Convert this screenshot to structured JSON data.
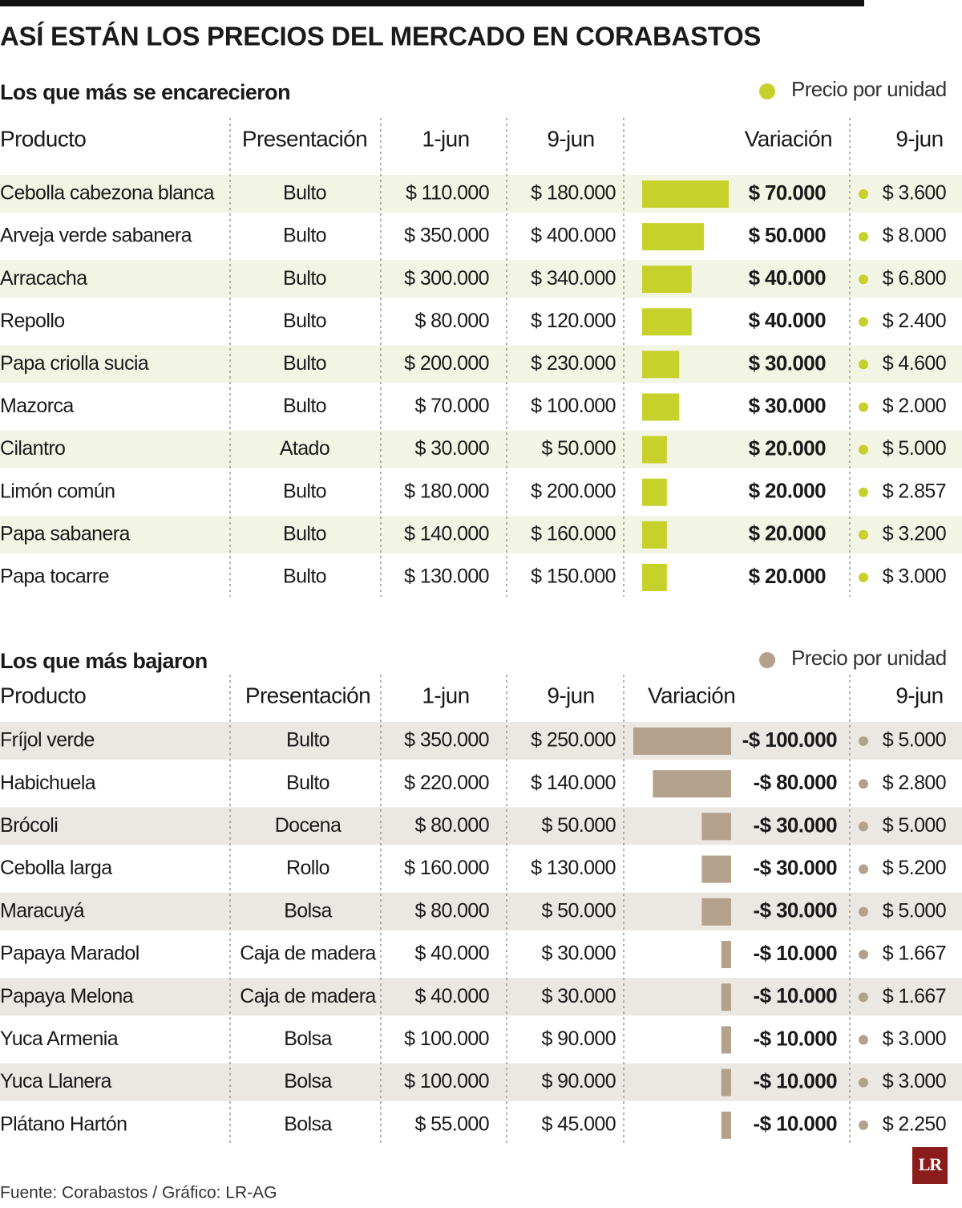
{
  "title": "ASÍ ESTÁN LOS PRECIOS DEL MERCADO EN CORABASTOS",
  "sections": [
    {
      "subtitle": "Los que más se encarecieron",
      "legend": "Precio por unidad",
      "color": "#c6d12b",
      "row_shade": "#f2f4e4",
      "headers": [
        "Producto",
        "Presentación",
        "1-jun",
        "9-jun",
        "Variación",
        "9-jun"
      ],
      "rows": [
        {
          "cells": [
            "Cebolla cabezona blanca",
            "Bulto",
            "$ 110.000",
            "$ 180.000"
          ],
          "variation": {
            "value": 70000,
            "label": "$ 70.000"
          },
          "unit_price": "$ 3.600"
        },
        {
          "cells": [
            "Arveja verde sabanera",
            "Bulto",
            "$ 350.000",
            "$ 400.000"
          ],
          "variation": {
            "value": 50000,
            "label": "$ 50.000"
          },
          "unit_price": "$ 8.000"
        },
        {
          "cells": [
            "Arracacha",
            "Bulto",
            "$ 300.000",
            "$ 340.000"
          ],
          "variation": {
            "value": 40000,
            "label": "$ 40.000"
          },
          "unit_price": "$ 6.800"
        },
        {
          "cells": [
            "Repollo",
            "Bulto",
            "$ 80.000",
            "$ 120.000"
          ],
          "variation": {
            "value": 40000,
            "label": "$ 40.000"
          },
          "unit_price": "$ 2.400"
        },
        {
          "cells": [
            "Papa criolla sucia",
            "Bulto",
            "$ 200.000",
            "$ 230.000"
          ],
          "variation": {
            "value": 30000,
            "label": "$ 30.000"
          },
          "unit_price": "$ 4.600"
        },
        {
          "cells": [
            "Mazorca",
            "Bulto",
            "$ 70.000",
            "$ 100.000"
          ],
          "variation": {
            "value": 30000,
            "label": "$ 30.000"
          },
          "unit_price": "$ 2.000"
        },
        {
          "cells": [
            "Cilantro",
            "Atado",
            "$ 30.000",
            "$ 50.000"
          ],
          "variation": {
            "value": 20000,
            "label": "$ 20.000"
          },
          "unit_price": "$ 5.000"
        },
        {
          "cells": [
            "Limón común",
            "Bulto",
            "$ 180.000",
            "$ 200.000"
          ],
          "variation": {
            "value": 20000,
            "label": "$ 20.000"
          },
          "unit_price": "$ 2.857"
        },
        {
          "cells": [
            "Papa sabanera",
            "Bulto",
            "$ 140.000",
            "$ 160.000"
          ],
          "variation": {
            "value": 20000,
            "label": "$ 20.000"
          },
          "unit_price": "$ 3.200"
        },
        {
          "cells": [
            "Papa tocarre",
            "Bulto",
            "$ 130.000",
            "$ 150.000"
          ],
          "variation": {
            "value": 20000,
            "label": "$ 20.000"
          },
          "unit_price": "$ 3.000"
        }
      ]
    },
    {
      "subtitle": "Los que más bajaron",
      "legend": "Precio por unidad",
      "color": "#b4a18b",
      "row_shade": "#ebe7e3",
      "headers": [
        "Producto",
        "Presentación",
        "1-jun",
        "9-jun",
        "Variación",
        "9-jun"
      ],
      "rows": [
        {
          "cells": [
            "Fríjol verde",
            "Bulto",
            "$ 350.000",
            "$ 250.000"
          ],
          "variation": {
            "value": -100000,
            "label": "-$ 100.000"
          },
          "unit_price": "$ 5.000"
        },
        {
          "cells": [
            "Habichuela",
            "Bulto",
            "$ 220.000",
            "$ 140.000"
          ],
          "variation": {
            "value": -80000,
            "label": "-$ 80.000"
          },
          "unit_price": "$ 2.800"
        },
        {
          "cells": [
            "Brócoli",
            "Docena",
            "$ 80.000",
            "$ 50.000"
          ],
          "variation": {
            "value": -30000,
            "label": "-$ 30.000"
          },
          "unit_price": "$ 5.000"
        },
        {
          "cells": [
            "Cebolla larga",
            "Rollo",
            "$ 160.000",
            "$ 130.000"
          ],
          "variation": {
            "value": -30000,
            "label": "-$ 30.000"
          },
          "unit_price": "$ 5.200"
        },
        {
          "cells": [
            "Maracuyá",
            "Bolsa",
            "$ 80.000",
            "$ 50.000"
          ],
          "variation": {
            "value": -30000,
            "label": "-$ 30.000"
          },
          "unit_price": "$ 5.000"
        },
        {
          "cells": [
            "Papaya Maradol",
            "Caja de madera",
            "$ 40.000",
            "$ 30.000"
          ],
          "variation": {
            "value": -10000,
            "label": "-$ 10.000"
          },
          "unit_price": "$ 1.667"
        },
        {
          "cells": [
            "Papaya Melona",
            "Caja de madera",
            "$ 40.000",
            "$ 30.000"
          ],
          "variation": {
            "value": -10000,
            "label": "-$ 10.000"
          },
          "unit_price": "$ 1.667"
        },
        {
          "cells": [
            "Yuca Armenia",
            "Bolsa",
            "$ 100.000",
            "$ 90.000"
          ],
          "variation": {
            "value": -10000,
            "label": "-$ 10.000"
          },
          "unit_price": "$ 3.000"
        },
        {
          "cells": [
            "Yuca Llanera",
            "Bolsa",
            "$ 100.000",
            "$ 90.000"
          ],
          "variation": {
            "value": -10000,
            "label": "-$ 10.000"
          },
          "unit_price": "$ 3.000"
        },
        {
          "cells": [
            "Plátano Hartón",
            "Bolsa",
            "$ 55.000",
            "$ 45.000"
          ],
          "variation": {
            "value": -10000,
            "label": "-$ 10.000"
          },
          "unit_price": "$ 2.250"
        }
      ]
    }
  ],
  "source": "Fuente: Corabastos / Gráfico: LR-AG",
  "logo": "LR"
}
